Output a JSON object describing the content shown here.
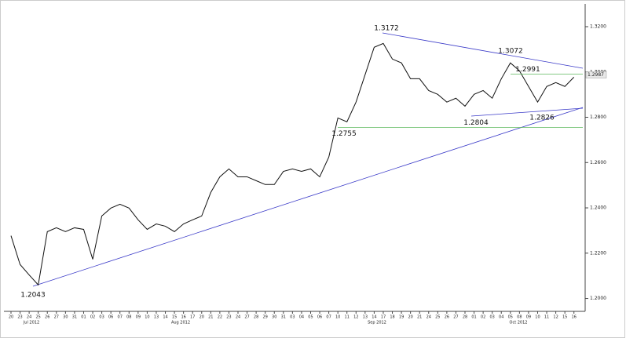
{
  "chart_data": {
    "type": "line",
    "categories": [
      "20",
      "23",
      "24",
      "25",
      "26",
      "27",
      "30",
      "31",
      "01",
      "02",
      "03",
      "06",
      "07",
      "08",
      "09",
      "10",
      "13",
      "14",
      "15",
      "16",
      "17",
      "20",
      "21",
      "22",
      "23",
      "24",
      "27",
      "28",
      "29",
      "30",
      "31",
      "03",
      "04",
      "05",
      "06",
      "07",
      "10",
      "11",
      "12",
      "13",
      "14",
      "17",
      "18",
      "19",
      "20",
      "21",
      "24",
      "25",
      "26",
      "27",
      "28",
      "01",
      "02",
      "03",
      "04",
      "05",
      "08",
      "09",
      "10",
      "11",
      "12",
      "15",
      "16"
    ],
    "values": [
      1.2277,
      1.215,
      1.2104,
      1.206,
      1.2295,
      1.2312,
      1.2295,
      1.2312,
      1.2305,
      1.2173,
      1.2364,
      1.2399,
      1.2416,
      1.2399,
      1.2347,
      1.2305,
      1.2329,
      1.2319,
      1.2295,
      1.2329,
      1.2347,
      1.2364,
      1.2468,
      1.2537,
      1.2572,
      1.2537,
      1.2537,
      1.252,
      1.2503,
      1.2503,
      1.2561,
      1.2572,
      1.2561,
      1.2572,
      1.2537,
      1.2624,
      1.2797,
      1.278,
      1.2867,
      1.2988,
      1.3109,
      1.3126,
      1.3057,
      1.304,
      1.297,
      1.297,
      1.2918,
      1.2901,
      1.2867,
      1.2884,
      1.2849,
      1.2901,
      1.2918,
      1.2884,
      1.297,
      1.304,
      1.3005,
      1.2936,
      1.2867,
      1.2936,
      1.2953,
      1.2936,
      1.2977
    ],
    "color": "#111111",
    "month_labels": [
      "Jul 2012",
      "Aug 2012",
      "Sep 2012",
      "Oct 2012"
    ],
    "ylim": [
      1.195,
      1.329
    ],
    "yticks": [
      {
        "value": 1.2,
        "label": "1.2000"
      },
      {
        "value": 1.22,
        "label": "1.2200"
      },
      {
        "value": 1.24,
        "label": "1.2400"
      },
      {
        "value": 1.26,
        "label": "1.2600"
      },
      {
        "value": 1.28,
        "label": "1.2800"
      },
      {
        "value": 1.3,
        "label": "1.3000"
      },
      {
        "value": 1.32,
        "label": "1.3200"
      }
    ],
    "annotations": [
      1.2043,
      1.3172,
      1.3072,
      1.2991,
      1.2804,
      1.2826,
      1.2755
    ],
    "last_price": 1.2987
  }
}
